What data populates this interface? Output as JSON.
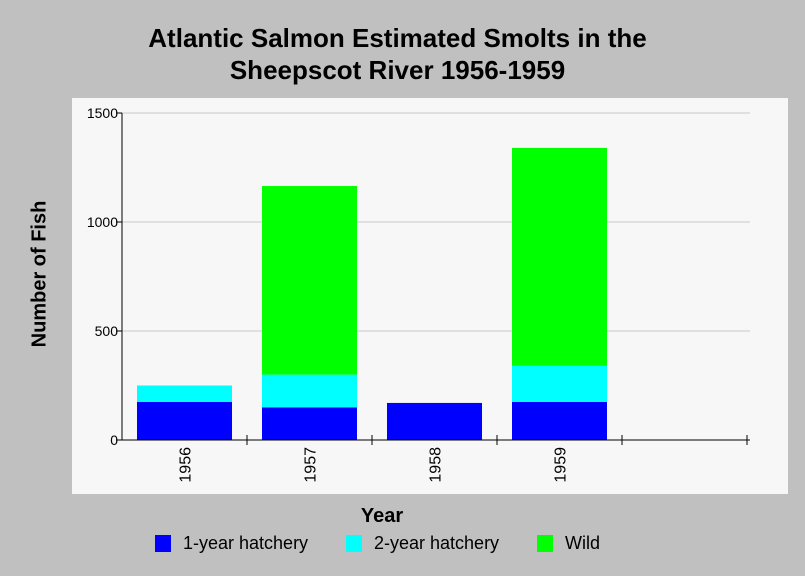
{
  "title_lines": [
    "Atlantic Salmon Estimated Smolts in the",
    "Sheepscot River 1956-1959"
  ],
  "chart_data": {
    "type": "bar",
    "stacked": true,
    "title": "Atlantic Salmon Estimated Smolts in the Sheepscot River 1956-1959",
    "xlabel": "Year",
    "ylabel": "Number of Fish",
    "categories": [
      "1956",
      "1957",
      "1958",
      "1959"
    ],
    "ylim": [
      0,
      1500
    ],
    "yticks": [
      "0",
      "500",
      "1000",
      "1500"
    ],
    "grid": true,
    "legend_position": "bottom",
    "series": [
      {
        "name": "1-year hatchery",
        "color": "#0000ff",
        "values": [
          175,
          150,
          170,
          175
        ]
      },
      {
        "name": "2-year hatchery",
        "color": "#00ffff",
        "values": [
          75,
          150,
          0,
          165
        ]
      },
      {
        "name": "Wild",
        "color": "#00ff00",
        "values": [
          0,
          865,
          0,
          1000
        ]
      }
    ]
  }
}
